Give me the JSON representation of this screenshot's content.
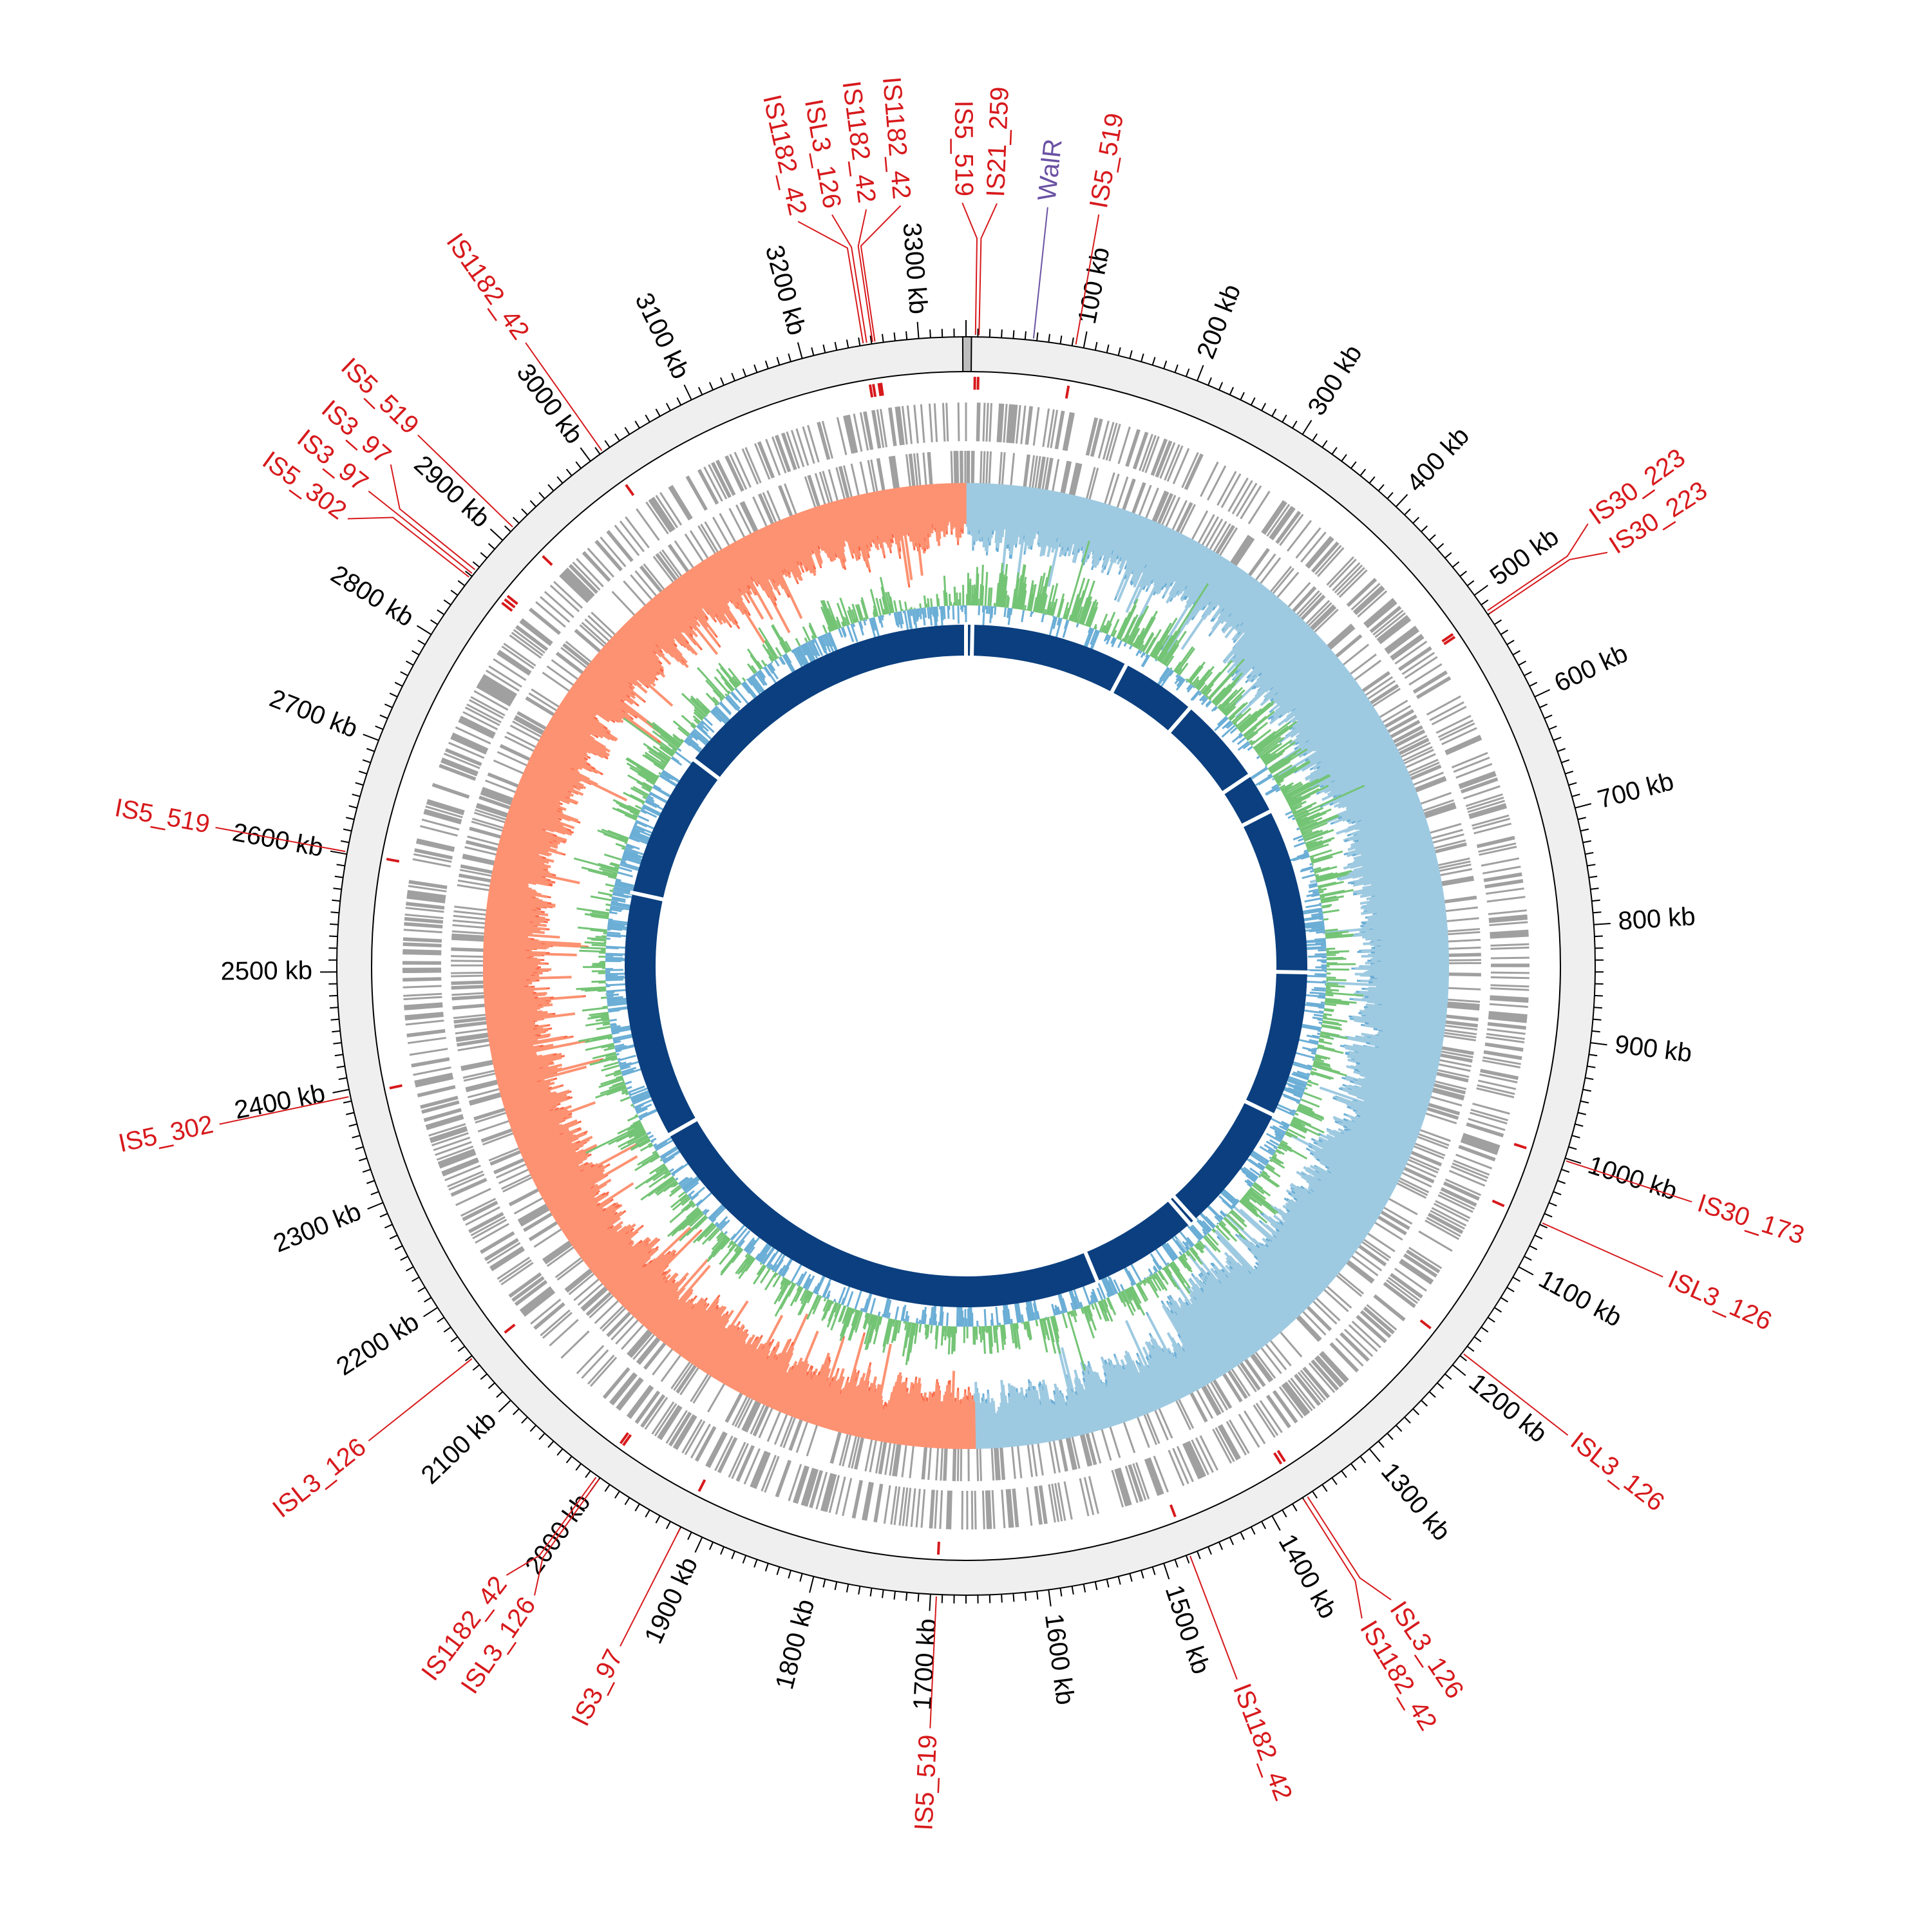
{
  "chart_data": {
    "type": "circular-genome",
    "genome_length_kb": 3340,
    "tick_labels": [
      {
        "kb": 100,
        "label": "100 kb"
      },
      {
        "kb": 200,
        "label": "200 kb"
      },
      {
        "kb": 300,
        "label": "300 kb"
      },
      {
        "kb": 400,
        "label": "400 kb"
      },
      {
        "kb": 500,
        "label": "500 kb"
      },
      {
        "kb": 600,
        "label": "600 kb"
      },
      {
        "kb": 700,
        "label": "700 kb"
      },
      {
        "kb": 800,
        "label": "800 kb"
      },
      {
        "kb": 900,
        "label": "900 kb"
      },
      {
        "kb": 1000,
        "label": "1000 kb"
      },
      {
        "kb": 1100,
        "label": "1100 kb"
      },
      {
        "kb": 1200,
        "label": "1200 kb"
      },
      {
        "kb": 1300,
        "label": "1300 kb"
      },
      {
        "kb": 1400,
        "label": "1400 kb"
      },
      {
        "kb": 1500,
        "label": "1500 kb"
      },
      {
        "kb": 1600,
        "label": "1600 kb"
      },
      {
        "kb": 1700,
        "label": "1700 kb"
      },
      {
        "kb": 1800,
        "label": "1800 kb"
      },
      {
        "kb": 1900,
        "label": "1900 kb"
      },
      {
        "kb": 2000,
        "label": "2000 kb"
      },
      {
        "kb": 2100,
        "label": "2100 kb"
      },
      {
        "kb": 2200,
        "label": "2200 kb"
      },
      {
        "kb": 2300,
        "label": "2300 kb"
      },
      {
        "kb": 2400,
        "label": "2400 kb"
      },
      {
        "kb": 2500,
        "label": "2500 kb"
      },
      {
        "kb": 2600,
        "label": "2600 kb"
      },
      {
        "kb": 2700,
        "label": "2700 kb"
      },
      {
        "kb": 2800,
        "label": "2800 kb"
      },
      {
        "kb": 2900,
        "label": "2900 kb"
      },
      {
        "kb": 3000,
        "label": "3000 kb"
      },
      {
        "kb": 3100,
        "label": "3100 kb"
      },
      {
        "kb": 3200,
        "label": "3200 kb"
      },
      {
        "kb": 3300,
        "label": "3300 kb"
      }
    ],
    "annotations": [
      {
        "label": "IS5_519",
        "kb": 8,
        "type": "IS"
      },
      {
        "label": "IS21_259",
        "kb": 11,
        "type": "IS"
      },
      {
        "label": "WalR",
        "kb": 57,
        "type": "gene"
      },
      {
        "label": "IS5_519",
        "kb": 93,
        "type": "IS"
      },
      {
        "label": "IS30_223",
        "kb": 517,
        "type": "IS"
      },
      {
        "label": "IS30_223",
        "kb": 520,
        "type": "IS"
      },
      {
        "label": "IS30_173",
        "kb": 1002,
        "type": "IS"
      },
      {
        "label": "ISL3_126",
        "kb": 1058,
        "type": "IS"
      },
      {
        "label": "ISL3_126",
        "kb": 1187,
        "type": "IS"
      },
      {
        "label": "ISL3_126",
        "kb": 1366,
        "type": "IS"
      },
      {
        "label": "IS1182_42",
        "kb": 1370,
        "type": "IS"
      },
      {
        "label": "IS1182_42",
        "kb": 1477,
        "type": "IS"
      },
      {
        "label": "IS5_519",
        "kb": 1695,
        "type": "IS"
      },
      {
        "label": "IS3_97",
        "kb": 1920,
        "type": "IS"
      },
      {
        "label": "ISL3_126",
        "kb": 2000,
        "type": "IS"
      },
      {
        "label": "IS1182_42",
        "kb": 2003,
        "type": "IS"
      },
      {
        "label": "ISL3_126",
        "kb": 2148,
        "type": "IS"
      },
      {
        "label": "IS5_302",
        "kb": 2394,
        "type": "IS"
      },
      {
        "label": "IS5_519",
        "kb": 2602,
        "type": "IS"
      },
      {
        "label": "IS5_302",
        "kb": 2858,
        "type": "IS"
      },
      {
        "label": "IS3_97",
        "kb": 2862,
        "type": "IS"
      },
      {
        "label": "IS3_97",
        "kb": 2866,
        "type": "IS"
      },
      {
        "label": "IS5_519",
        "kb": 2914,
        "type": "IS"
      },
      {
        "label": "IS1182_42",
        "kb": 3013,
        "type": "IS"
      },
      {
        "label": "IS1182_42",
        "kb": 3253,
        "type": "IS"
      },
      {
        "label": "ISL3_126",
        "kb": 3256,
        "type": "IS"
      },
      {
        "label": "IS1182_42",
        "kb": 3261,
        "type": "IS"
      },
      {
        "label": "IS1182_42",
        "kb": 3263,
        "type": "IS"
      }
    ],
    "inner_ring_gaps_kb": [
      0,
      10,
      260,
      380,
      520,
      585,
      845,
      1075,
      1280,
      1290,
      1460,
      2230,
      2620,
      2850
    ],
    "colors": {
      "is_element": "#d7191c",
      "gene_label": "#6a51a3",
      "gene_track": "#a0a0a0",
      "ideogram": "#efefef",
      "gc_skew_positive": "#9ecae1",
      "gc_skew_positive_line": "#6baed6",
      "gc_skew_negative": "#fc9272",
      "gc_skew_negative_line": "#fb6a4a",
      "gc_content_high": "#74c476",
      "gc_content_low": "#6baed6",
      "inner_ring": "#0b3f7f"
    }
  }
}
